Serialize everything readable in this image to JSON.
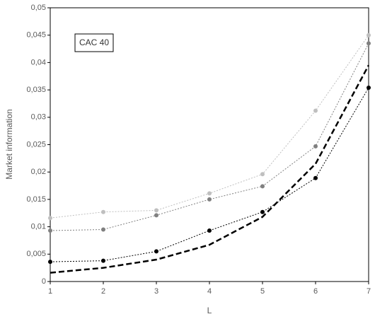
{
  "chart_data": {
    "type": "line",
    "annotation": "CAC 40",
    "x_label": "L",
    "y_label": "Market information",
    "x": [
      1,
      2,
      3,
      4,
      5,
      6,
      7
    ],
    "xlim": [
      1,
      7
    ],
    "xticks": [
      1,
      2,
      3,
      4,
      5,
      6,
      7
    ],
    "ylim": [
      0,
      0.05
    ],
    "yticks": [
      0,
      {
        "value": 0.005,
        "label": "0,005"
      },
      {
        "value": 0.01,
        "label": "0,01"
      },
      {
        "value": 0.015,
        "label": "0,015"
      },
      {
        "value": 0.02,
        "label": "0,02"
      },
      {
        "value": 0.025,
        "label": "0,025"
      },
      {
        "value": 0.03,
        "label": "0,03"
      },
      {
        "value": 0.035,
        "label": "0,035"
      },
      {
        "value": 0.04,
        "label": "0,04"
      },
      {
        "value": 0.045,
        "label": "0,045"
      },
      {
        "value": 0.05,
        "label": "0,05"
      }
    ],
    "series": [
      {
        "color": "#bfbfbf",
        "style": "dotted",
        "markers": true,
        "values": [
          0.0116,
          0.0127,
          0.013,
          0.0161,
          0.0196,
          0.0312,
          0.045
        ]
      },
      {
        "color": "#808080",
        "style": "dotted",
        "markers": true,
        "values": [
          0.0093,
          0.0095,
          0.0121,
          0.015,
          0.0174,
          0.0247,
          0.0435
        ]
      },
      {
        "color": "#000000",
        "style": "dotted",
        "markers": true,
        "values": [
          0.0036,
          0.0038,
          0.0055,
          0.0093,
          0.0127,
          0.0189,
          0.0354
        ]
      },
      {
        "color": "#000000",
        "style": "dashed",
        "markers": false,
        "values": [
          0.0016,
          0.0025,
          0.004,
          0.0067,
          0.0118,
          0.0215,
          0.0395
        ]
      }
    ]
  }
}
